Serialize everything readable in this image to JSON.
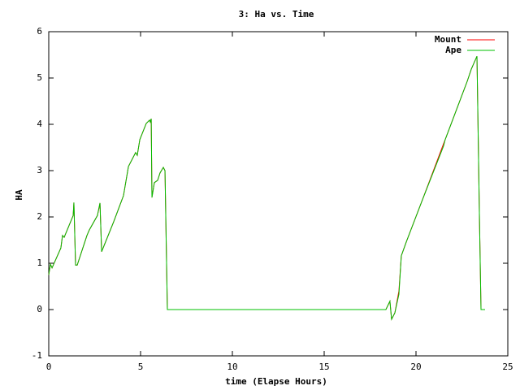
{
  "chart_data": {
    "type": "line",
    "title": "3: Ha vs. Time",
    "x_label": "time (Elapse Hours)",
    "y_label": "HA",
    "x": [
      0,
      0.09,
      0.18,
      0.66,
      0.75,
      0.84,
      1.33,
      1.37,
      1.46,
      1.55,
      2.08,
      2.21,
      2.65,
      2.79,
      2.88,
      3.54,
      4.07,
      4.34,
      4.73,
      4.82,
      4.96,
      5.31,
      5.49,
      5.53,
      5.58,
      5.62,
      5.75,
      5.93,
      6.06,
      6.24,
      6.33,
      6.46,
      18.36,
      18.58,
      18.67,
      18.85,
      19.07,
      19.2,
      19.47,
      20.35,
      21.5,
      21.59,
      22.79,
      23.01,
      23.32,
      23.45,
      23.54,
      23.76
    ],
    "series": [
      {
        "name": "Mount",
        "color": "#ff0000",
        "values": [
          0.75,
          0.98,
          0.9,
          1.33,
          1.6,
          1.56,
          2.03,
          2.31,
          0.96,
          0.96,
          1.6,
          1.72,
          2.03,
          2.3,
          1.25,
          1.9,
          2.46,
          3.09,
          3.39,
          3.33,
          3.67,
          4.02,
          4.09,
          4.05,
          4.12,
          2.42,
          2.74,
          2.79,
          2.95,
          3.07,
          3.0,
          0,
          0,
          0.18,
          -0.21,
          -0.07,
          0.4,
          1.16,
          1.46,
          2.37,
          3.58,
          3.67,
          4.93,
          5.19,
          5.47,
          2.12,
          0,
          0
        ]
      },
      {
        "name": "Ape",
        "color": "#00c000",
        "values": [
          0.75,
          0.98,
          0.9,
          1.33,
          1.6,
          1.56,
          2.03,
          2.31,
          0.96,
          0.96,
          1.6,
          1.72,
          2.03,
          2.3,
          1.25,
          1.9,
          2.46,
          3.09,
          3.39,
          3.33,
          3.67,
          4.02,
          4.09,
          4.05,
          4.12,
          2.42,
          2.74,
          2.79,
          2.95,
          3.07,
          3.0,
          0,
          0,
          0.18,
          -0.21,
          -0.07,
          0.33,
          1.16,
          1.46,
          2.37,
          3.53,
          3.67,
          4.93,
          5.19,
          5.47,
          2.12,
          0,
          0
        ]
      }
    ],
    "xlim": [
      0,
      25
    ],
    "xticks": [
      0,
      5,
      10,
      15,
      20,
      25
    ],
    "ylim": [
      -1,
      6
    ],
    "yticks": [
      -1,
      0,
      1,
      2,
      3,
      4,
      5,
      6
    ],
    "legend": "top-right"
  }
}
